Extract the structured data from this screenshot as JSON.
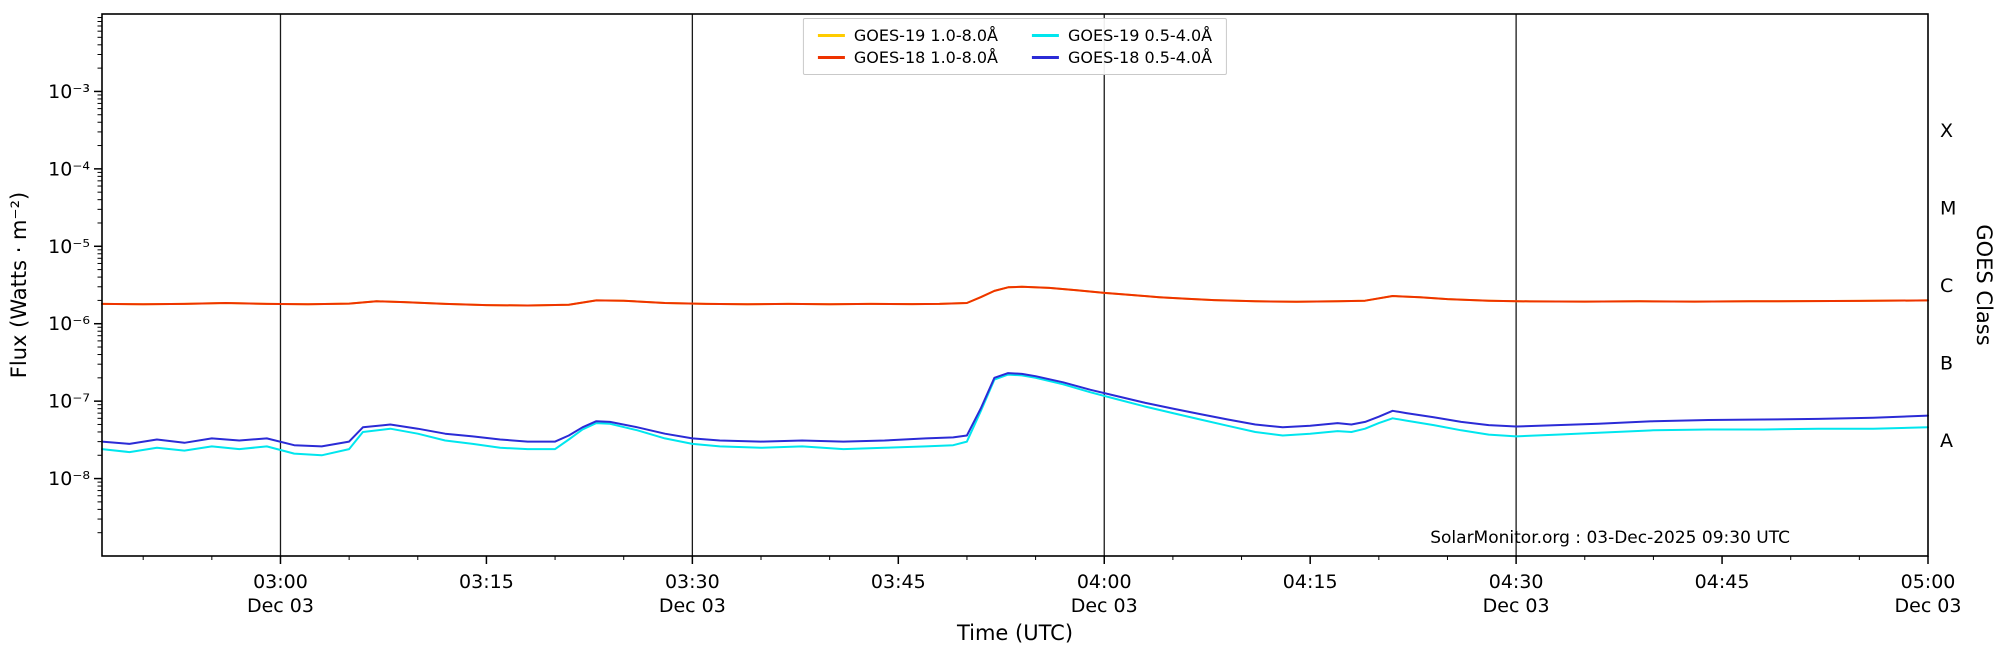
{
  "chart_data": {
    "type": "line",
    "title": "",
    "xlabel": "Time (UTC)",
    "ylabel": "Flux (Watts · m⁻²)",
    "ylabel_right": "GOES Class",
    "annotation": "SolarMonitor.org : 03-Dec-2025 09:30 UTC",
    "x_unit": "minutes after 00:00 UTC on Dec 03",
    "x_range": [
      167,
      300
    ],
    "y_scale": "log10",
    "y_range_exponents": [
      -9,
      -2
    ],
    "grid": "vertical lines every 30 minutes",
    "legend_position": "top-center",
    "gridline_times": [
      180,
      210,
      240,
      270
    ],
    "yticks": [
      {
        "exponent": -3,
        "label": "10⁻³"
      },
      {
        "exponent": -4,
        "label": "10⁻⁴"
      },
      {
        "exponent": -5,
        "label": "10⁻⁵"
      },
      {
        "exponent": -6,
        "label": "10⁻⁶"
      },
      {
        "exponent": -7,
        "label": "10⁻⁷"
      },
      {
        "exponent": -8,
        "label": "10⁻⁸"
      }
    ],
    "goes_class_letters": [
      {
        "label": "X",
        "exponent": -3.5
      },
      {
        "label": "M",
        "exponent": -4.5
      },
      {
        "label": "C",
        "exponent": -5.5
      },
      {
        "label": "B",
        "exponent": -6.5
      },
      {
        "label": "A",
        "exponent": -7.5
      }
    ],
    "xticks": [
      {
        "t": 180,
        "label": "03:00",
        "date": "Dec 03"
      },
      {
        "t": 195,
        "label": "03:15"
      },
      {
        "t": 210,
        "label": "03:30",
        "date": "Dec 03"
      },
      {
        "t": 225,
        "label": "03:45"
      },
      {
        "t": 240,
        "label": "04:00",
        "date": "Dec 03"
      },
      {
        "t": 255,
        "label": "04:15"
      },
      {
        "t": 270,
        "label": "04:30",
        "date": "Dec 03"
      },
      {
        "t": 285,
        "label": "04:45"
      },
      {
        "t": 300,
        "label": "05:00",
        "date": "Dec 03"
      }
    ],
    "series": [
      {
        "name": "GOES-19 1.0-8.0Å",
        "color": "#ffcc00",
        "x": [
          167,
          170,
          173,
          176,
          179,
          182,
          185,
          187,
          189,
          192,
          195,
          198,
          201,
          203,
          205,
          208,
          211,
          214,
          217,
          220,
          223,
          226,
          228,
          230,
          231,
          232,
          233,
          234,
          236,
          238,
          240,
          242,
          244,
          246,
          248,
          251,
          254,
          257,
          259,
          261,
          263,
          265,
          268,
          271,
          275,
          279,
          283,
          287,
          291,
          295,
          300
        ],
        "y": [
          1.8e-06,
          1.78e-06,
          1.8e-06,
          1.85e-06,
          1.8e-06,
          1.78e-06,
          1.82e-06,
          1.95e-06,
          1.9e-06,
          1.8e-06,
          1.74e-06,
          1.72e-06,
          1.76e-06,
          2e-06,
          1.98e-06,
          1.85e-06,
          1.8e-06,
          1.78e-06,
          1.8e-06,
          1.78e-06,
          1.8e-06,
          1.79e-06,
          1.8e-06,
          1.85e-06,
          2.2e-06,
          2.65e-06,
          2.95e-06,
          3e-06,
          2.9e-06,
          2.7e-06,
          2.5e-06,
          2.35e-06,
          2.2e-06,
          2.1e-06,
          2.02e-06,
          1.95e-06,
          1.92e-06,
          1.95e-06,
          1.98e-06,
          2.28e-06,
          2.2e-06,
          2.08e-06,
          1.98e-06,
          1.94e-06,
          1.93e-06,
          1.95e-06,
          1.93e-06,
          1.95e-06,
          1.96e-06,
          1.97e-06,
          2e-06
        ]
      },
      {
        "name": "GOES-18 1.0-8.0Å",
        "color": "#ee3300",
        "x": [
          167,
          170,
          173,
          176,
          179,
          182,
          185,
          187,
          189,
          192,
          195,
          198,
          201,
          203,
          205,
          208,
          211,
          214,
          217,
          220,
          223,
          226,
          228,
          230,
          231,
          232,
          233,
          234,
          236,
          238,
          240,
          242,
          244,
          246,
          248,
          251,
          254,
          257,
          259,
          261,
          263,
          265,
          268,
          271,
          275,
          279,
          283,
          287,
          291,
          295,
          300
        ],
        "y": [
          1.8e-06,
          1.78e-06,
          1.8e-06,
          1.85e-06,
          1.8e-06,
          1.78e-06,
          1.82e-06,
          1.95e-06,
          1.9e-06,
          1.8e-06,
          1.74e-06,
          1.72e-06,
          1.76e-06,
          2e-06,
          1.98e-06,
          1.85e-06,
          1.8e-06,
          1.78e-06,
          1.8e-06,
          1.78e-06,
          1.8e-06,
          1.79e-06,
          1.8e-06,
          1.85e-06,
          2.2e-06,
          2.65e-06,
          2.95e-06,
          3e-06,
          2.9e-06,
          2.7e-06,
          2.5e-06,
          2.35e-06,
          2.2e-06,
          2.1e-06,
          2.02e-06,
          1.95e-06,
          1.92e-06,
          1.95e-06,
          1.98e-06,
          2.28e-06,
          2.2e-06,
          2.08e-06,
          1.98e-06,
          1.94e-06,
          1.93e-06,
          1.95e-06,
          1.93e-06,
          1.95e-06,
          1.96e-06,
          1.97e-06,
          2e-06
        ]
      },
      {
        "name": "GOES-19 0.5-4.0Å",
        "color": "#00e6ee",
        "x": [
          167,
          169,
          171,
          173,
          175,
          177,
          179,
          181,
          183,
          185,
          186,
          188,
          190,
          192,
          194,
          196,
          198,
          200,
          201,
          202,
          203,
          204,
          206,
          208,
          210,
          212,
          215,
          218,
          221,
          224,
          227,
          229,
          230,
          231,
          232,
          233,
          234,
          235,
          237,
          239,
          241,
          243,
          245,
          247,
          249,
          251,
          253,
          255,
          257,
          258,
          259,
          260,
          261,
          262,
          264,
          266,
          268,
          270,
          273,
          276,
          280,
          284,
          288,
          292,
          296,
          300
        ],
        "y": [
          2.4e-08,
          2.2e-08,
          2.5e-08,
          2.3e-08,
          2.6e-08,
          2.4e-08,
          2.6e-08,
          2.1e-08,
          2e-08,
          2.4e-08,
          4e-08,
          4.4e-08,
          3.8e-08,
          3.1e-08,
          2.8e-08,
          2.5e-08,
          2.4e-08,
          2.4e-08,
          3.2e-08,
          4.3e-08,
          5.2e-08,
          5.1e-08,
          4.2e-08,
          3.3e-08,
          2.8e-08,
          2.6e-08,
          2.5e-08,
          2.6e-08,
          2.4e-08,
          2.5e-08,
          2.6e-08,
          2.7e-08,
          3e-08,
          7.4e-08,
          1.9e-07,
          2.2e-07,
          2.15e-07,
          2e-07,
          1.65e-07,
          1.3e-07,
          1.05e-07,
          8.5e-08,
          7e-08,
          5.8e-08,
          4.8e-08,
          4e-08,
          3.6e-08,
          3.8e-08,
          4.1e-08,
          4e-08,
          4.4e-08,
          5.2e-08,
          6e-08,
          5.6e-08,
          4.9e-08,
          4.2e-08,
          3.7e-08,
          3.5e-08,
          3.7e-08,
          3.9e-08,
          4.2e-08,
          4.3e-08,
          4.3e-08,
          4.4e-08,
          4.4e-08,
          4.6e-08
        ]
      },
      {
        "name": "GOES-18 0.5-4.0Å",
        "color": "#2b2bd6",
        "x": [
          167,
          169,
          171,
          173,
          175,
          177,
          179,
          181,
          183,
          185,
          186,
          188,
          190,
          192,
          194,
          196,
          198,
          200,
          201,
          202,
          203,
          204,
          206,
          208,
          210,
          212,
          215,
          218,
          221,
          224,
          227,
          229,
          230,
          231,
          232,
          233,
          234,
          235,
          237,
          239,
          241,
          243,
          245,
          247,
          249,
          251,
          253,
          255,
          257,
          258,
          259,
          260,
          261,
          262,
          264,
          266,
          268,
          270,
          273,
          276,
          280,
          284,
          288,
          292,
          296,
          300
        ],
        "y": [
          3e-08,
          2.8e-08,
          3.2e-08,
          2.9e-08,
          3.3e-08,
          3.1e-08,
          3.3e-08,
          2.7e-08,
          2.6e-08,
          3e-08,
          4.6e-08,
          5e-08,
          4.4e-08,
          3.8e-08,
          3.5e-08,
          3.2e-08,
          3e-08,
          3e-08,
          3.6e-08,
          4.6e-08,
          5.5e-08,
          5.4e-08,
          4.6e-08,
          3.8e-08,
          3.3e-08,
          3.1e-08,
          3e-08,
          3.1e-08,
          3e-08,
          3.1e-08,
          3.3e-08,
          3.4e-08,
          3.6e-08,
          8e-08,
          2e-07,
          2.3e-07,
          2.25e-07,
          2.1e-07,
          1.75e-07,
          1.4e-07,
          1.15e-07,
          9.5e-08,
          8e-08,
          6.8e-08,
          5.8e-08,
          5e-08,
          4.6e-08,
          4.8e-08,
          5.2e-08,
          5e-08,
          5.4e-08,
          6.3e-08,
          7.5e-08,
          7e-08,
          6.2e-08,
          5.4e-08,
          4.9e-08,
          4.7e-08,
          4.9e-08,
          5.1e-08,
          5.5e-08,
          5.7e-08,
          5.8e-08,
          5.9e-08,
          6.1e-08,
          6.5e-08
        ]
      }
    ]
  }
}
